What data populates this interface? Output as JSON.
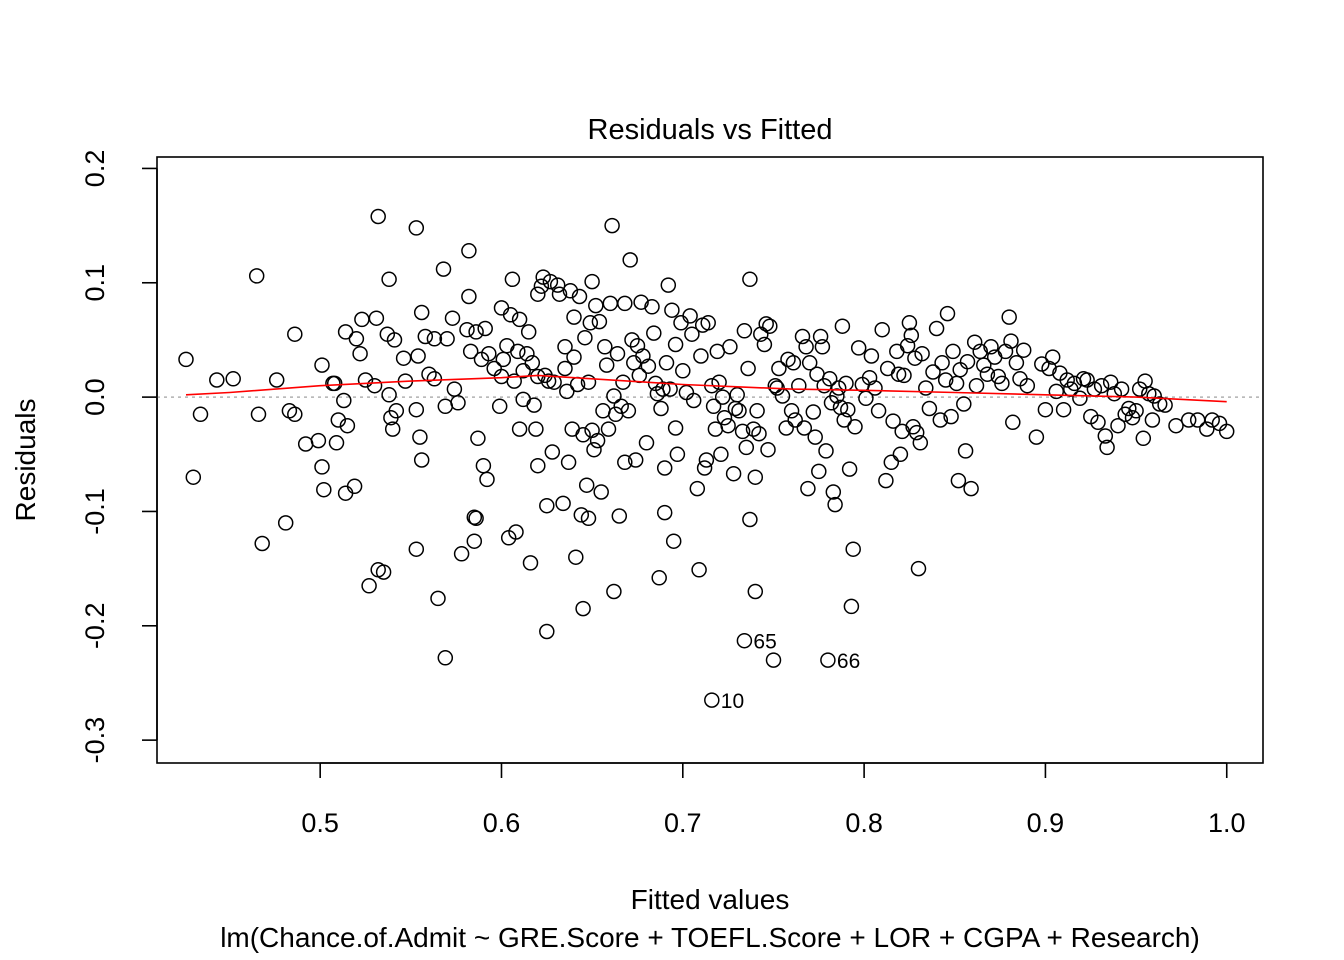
{
  "chart_data": {
    "type": "scatter",
    "title": "Residuals vs Fitted",
    "xlabel": "Fitted values",
    "ylabel": "Residuals",
    "subtitle": "lm(Chance.of.Admit ~ GRE.Score + TOEFL.Score + LOR + CGPA + Research)",
    "xlim": [
      0.41,
      1.02
    ],
    "ylim": [
      -0.32,
      0.21
    ],
    "x_ticks": [
      "0.5",
      "0.6",
      "0.7",
      "0.8",
      "0.9",
      "1.0"
    ],
    "y_ticks": [
      "-0.3",
      "-0.2",
      "-0.1",
      "0.0",
      "0.1",
      "0.2"
    ],
    "grid": false,
    "reference_line": {
      "y": 0.0,
      "style": "dotted",
      "color": "#b0b0b0"
    },
    "smoother_color": "#ff0000",
    "point_color": "#000000",
    "labeled_points": [
      {
        "label": "65",
        "x": 0.734,
        "y": -0.213
      },
      {
        "label": "66",
        "x": 0.78,
        "y": -0.23
      },
      {
        "label": "10",
        "x": 0.716,
        "y": -0.265
      }
    ],
    "smoother": {
      "x": [
        0.426,
        0.45,
        0.5,
        0.55,
        0.6,
        0.62,
        0.65,
        0.68,
        0.7,
        0.73,
        0.76,
        0.8,
        0.85,
        0.9,
        0.95,
        1.0
      ],
      "y": [
        0.002,
        0.004,
        0.01,
        0.014,
        0.017,
        0.019,
        0.016,
        0.013,
        0.011,
        0.009,
        0.007,
        0.006,
        0.004,
        0.002,
        0.0,
        -0.004
      ]
    },
    "points": [
      [
        0.426,
        0.033
      ],
      [
        0.43,
        -0.07
      ],
      [
        0.434,
        -0.015
      ],
      [
        0.443,
        0.015
      ],
      [
        0.452,
        0.016
      ],
      [
        0.465,
        0.106
      ],
      [
        0.466,
        -0.015
      ],
      [
        0.468,
        -0.128
      ],
      [
        0.476,
        0.015
      ],
      [
        0.481,
        -0.11
      ],
      [
        0.483,
        -0.012
      ],
      [
        0.486,
        -0.015
      ],
      [
        0.486,
        0.055
      ],
      [
        0.492,
        -0.041
      ],
      [
        0.499,
        -0.038
      ],
      [
        0.501,
        0.028
      ],
      [
        0.501,
        -0.061
      ],
      [
        0.502,
        -0.081
      ],
      [
        0.507,
        0.012
      ],
      [
        0.508,
        0.012
      ],
      [
        0.509,
        -0.04
      ],
      [
        0.51,
        -0.02
      ],
      [
        0.513,
        -0.003
      ],
      [
        0.514,
        0.057
      ],
      [
        0.514,
        -0.084
      ],
      [
        0.515,
        -0.025
      ],
      [
        0.519,
        -0.078
      ],
      [
        0.52,
        0.051
      ],
      [
        0.522,
        0.038
      ],
      [
        0.523,
        0.068
      ],
      [
        0.525,
        0.015
      ],
      [
        0.527,
        -0.165
      ],
      [
        0.53,
        0.01
      ],
      [
        0.531,
        0.069
      ],
      [
        0.532,
        -0.151
      ],
      [
        0.532,
        0.158
      ],
      [
        0.535,
        -0.153
      ],
      [
        0.537,
        0.055
      ],
      [
        0.538,
        0.103
      ],
      [
        0.538,
        0.002
      ],
      [
        0.539,
        -0.018
      ],
      [
        0.54,
        -0.028
      ],
      [
        0.541,
        0.05
      ],
      [
        0.542,
        -0.012
      ],
      [
        0.546,
        0.034
      ],
      [
        0.547,
        0.014
      ],
      [
        0.553,
        -0.011
      ],
      [
        0.553,
        0.148
      ],
      [
        0.553,
        -0.133
      ],
      [
        0.554,
        0.036
      ],
      [
        0.555,
        -0.035
      ],
      [
        0.556,
        -0.055
      ],
      [
        0.556,
        0.074
      ],
      [
        0.558,
        0.053
      ],
      [
        0.56,
        0.02
      ],
      [
        0.563,
        0.016
      ],
      [
        0.563,
        0.051
      ],
      [
        0.565,
        -0.176
      ],
      [
        0.568,
        0.112
      ],
      [
        0.569,
        -0.008
      ],
      [
        0.569,
        -0.228
      ],
      [
        0.57,
        0.051
      ],
      [
        0.573,
        0.069
      ],
      [
        0.574,
        0.007
      ],
      [
        0.576,
        -0.005
      ],
      [
        0.578,
        -0.137
      ],
      [
        0.581,
        0.059
      ],
      [
        0.582,
        0.088
      ],
      [
        0.582,
        0.128
      ],
      [
        0.583,
        0.04
      ],
      [
        0.585,
        -0.105
      ],
      [
        0.585,
        -0.126
      ],
      [
        0.586,
        -0.106
      ],
      [
        0.587,
        -0.036
      ],
      [
        0.586,
        0.057
      ],
      [
        0.589,
        0.033
      ],
      [
        0.59,
        -0.06
      ],
      [
        0.591,
        0.06
      ],
      [
        0.592,
        -0.072
      ],
      [
        0.593,
        0.038
      ],
      [
        0.596,
        0.025
      ],
      [
        0.599,
        -0.008
      ],
      [
        0.6,
        0.078
      ],
      [
        0.6,
        0.018
      ],
      [
        0.601,
        0.033
      ],
      [
        0.603,
        0.045
      ],
      [
        0.604,
        -0.123
      ],
      [
        0.605,
        0.072
      ],
      [
        0.606,
        0.103
      ],
      [
        0.607,
        0.014
      ],
      [
        0.608,
        -0.118
      ],
      [
        0.609,
        0.04
      ],
      [
        0.61,
        0.068
      ],
      [
        0.61,
        -0.028
      ],
      [
        0.612,
        0.023
      ],
      [
        0.612,
        -0.002
      ],
      [
        0.614,
        0.038
      ],
      [
        0.615,
        0.057
      ],
      [
        0.616,
        -0.145
      ],
      [
        0.617,
        0.03
      ],
      [
        0.618,
        -0.007
      ],
      [
        0.619,
        -0.028
      ],
      [
        0.62,
        0.09
      ],
      [
        0.62,
        0.018
      ],
      [
        0.62,
        -0.06
      ],
      [
        0.622,
        0.097
      ],
      [
        0.623,
        0.105
      ],
      [
        0.624,
        0.019
      ],
      [
        0.625,
        -0.205
      ],
      [
        0.625,
        -0.095
      ],
      [
        0.626,
        0.014
      ],
      [
        0.627,
        0.101
      ],
      [
        0.628,
        -0.048
      ],
      [
        0.629,
        0.013
      ],
      [
        0.631,
        0.098
      ],
      [
        0.632,
        0.09
      ],
      [
        0.634,
        -0.093
      ],
      [
        0.635,
        0.044
      ],
      [
        0.635,
        0.025
      ],
      [
        0.636,
        0.005
      ],
      [
        0.637,
        -0.057
      ],
      [
        0.638,
        0.093
      ],
      [
        0.639,
        -0.028
      ],
      [
        0.64,
        0.07
      ],
      [
        0.64,
        0.035
      ],
      [
        0.641,
        -0.14
      ],
      [
        0.642,
        0.011
      ],
      [
        0.643,
        0.088
      ],
      [
        0.644,
        -0.103
      ],
      [
        0.645,
        -0.033
      ],
      [
        0.645,
        -0.185
      ],
      [
        0.646,
        0.052
      ],
      [
        0.647,
        -0.077
      ],
      [
        0.648,
        -0.106
      ],
      [
        0.648,
        0.013
      ],
      [
        0.649,
        0.065
      ],
      [
        0.65,
        -0.029
      ],
      [
        0.65,
        0.101
      ],
      [
        0.651,
        -0.046
      ],
      [
        0.652,
        0.08
      ],
      [
        0.653,
        -0.038
      ],
      [
        0.654,
        0.066
      ],
      [
        0.655,
        -0.083
      ],
      [
        0.656,
        -0.012
      ],
      [
        0.657,
        0.044
      ],
      [
        0.658,
        0.028
      ],
      [
        0.659,
        -0.028
      ],
      [
        0.66,
        0.082
      ],
      [
        0.661,
        0.15
      ],
      [
        0.662,
        0.001
      ],
      [
        0.662,
        -0.17
      ],
      [
        0.663,
        -0.015
      ],
      [
        0.664,
        0.038
      ],
      [
        0.665,
        -0.104
      ],
      [
        0.666,
        -0.008
      ],
      [
        0.667,
        0.013
      ],
      [
        0.668,
        0.082
      ],
      [
        0.668,
        -0.057
      ],
      [
        0.67,
        -0.012
      ],
      [
        0.671,
        0.12
      ],
      [
        0.672,
        0.05
      ],
      [
        0.673,
        0.03
      ],
      [
        0.674,
        -0.055
      ],
      [
        0.675,
        0.045
      ],
      [
        0.676,
        0.019
      ],
      [
        0.677,
        0.083
      ],
      [
        0.678,
        0.036
      ],
      [
        0.68,
        -0.04
      ],
      [
        0.681,
        0.027
      ],
      [
        0.683,
        0.079
      ],
      [
        0.684,
        0.056
      ],
      [
        0.685,
        0.012
      ],
      [
        0.686,
        0.003
      ],
      [
        0.687,
        -0.158
      ],
      [
        0.688,
        -0.01
      ],
      [
        0.689,
        0.007
      ],
      [
        0.69,
        -0.101
      ],
      [
        0.69,
        -0.062
      ],
      [
        0.691,
        0.03
      ],
      [
        0.692,
        0.098
      ],
      [
        0.693,
        0.007
      ],
      [
        0.694,
        0.076
      ],
      [
        0.695,
        -0.126
      ],
      [
        0.696,
        -0.027
      ],
      [
        0.696,
        0.046
      ],
      [
        0.697,
        -0.05
      ],
      [
        0.699,
        0.065
      ],
      [
        0.7,
        0.023
      ],
      [
        0.702,
        0.004
      ],
      [
        0.704,
        0.071
      ],
      [
        0.705,
        0.055
      ],
      [
        0.706,
        -0.003
      ],
      [
        0.708,
        -0.08
      ],
      [
        0.709,
        -0.151
      ],
      [
        0.71,
        0.036
      ],
      [
        0.711,
        0.063
      ],
      [
        0.712,
        -0.062
      ],
      [
        0.713,
        -0.055
      ],
      [
        0.714,
        0.065
      ],
      [
        0.716,
        -0.265
      ],
      [
        0.716,
        0.01
      ],
      [
        0.717,
        -0.008
      ],
      [
        0.718,
        -0.028
      ],
      [
        0.719,
        0.04
      ],
      [
        0.72,
        0.013
      ],
      [
        0.721,
        -0.05
      ],
      [
        0.722,
        0.0
      ],
      [
        0.723,
        -0.018
      ],
      [
        0.725,
        -0.025
      ],
      [
        0.726,
        0.044
      ],
      [
        0.728,
        -0.067
      ],
      [
        0.729,
        -0.01
      ],
      [
        0.73,
        0.002
      ],
      [
        0.731,
        -0.012
      ],
      [
        0.733,
        -0.03
      ],
      [
        0.734,
        -0.213
      ],
      [
        0.734,
        0.058
      ],
      [
        0.735,
        -0.044
      ],
      [
        0.736,
        0.025
      ],
      [
        0.737,
        -0.107
      ],
      [
        0.737,
        0.103
      ],
      [
        0.739,
        -0.028
      ],
      [
        0.74,
        -0.07
      ],
      [
        0.74,
        -0.17
      ],
      [
        0.741,
        -0.012
      ],
      [
        0.742,
        -0.032
      ],
      [
        0.743,
        0.055
      ],
      [
        0.745,
        0.046
      ],
      [
        0.746,
        0.064
      ],
      [
        0.747,
        -0.046
      ],
      [
        0.748,
        0.062
      ],
      [
        0.75,
        -0.23
      ],
      [
        0.751,
        0.01
      ],
      [
        0.752,
        0.008
      ],
      [
        0.753,
        0.025
      ],
      [
        0.755,
        0.001
      ],
      [
        0.757,
        -0.027
      ],
      [
        0.758,
        0.033
      ],
      [
        0.76,
        -0.012
      ],
      [
        0.761,
        0.03
      ],
      [
        0.762,
        -0.02
      ],
      [
        0.764,
        0.01
      ],
      [
        0.766,
        0.053
      ],
      [
        0.767,
        -0.027
      ],
      [
        0.768,
        0.044
      ],
      [
        0.769,
        -0.08
      ],
      [
        0.77,
        0.03
      ],
      [
        0.772,
        -0.013
      ],
      [
        0.773,
        -0.035
      ],
      [
        0.774,
        0.02
      ],
      [
        0.775,
        -0.065
      ],
      [
        0.776,
        0.053
      ],
      [
        0.777,
        0.044
      ],
      [
        0.778,
        0.01
      ],
      [
        0.779,
        -0.047
      ],
      [
        0.78,
        -0.23
      ],
      [
        0.781,
        0.016
      ],
      [
        0.782,
        -0.005
      ],
      [
        0.783,
        -0.083
      ],
      [
        0.784,
        -0.094
      ],
      [
        0.785,
        0.001
      ],
      [
        0.786,
        0.008
      ],
      [
        0.787,
        -0.009
      ],
      [
        0.788,
        0.062
      ],
      [
        0.789,
        -0.02
      ],
      [
        0.79,
        0.012
      ],
      [
        0.791,
        -0.011
      ],
      [
        0.792,
        -0.063
      ],
      [
        0.793,
        -0.183
      ],
      [
        0.794,
        -0.133
      ],
      [
        0.795,
        -0.026
      ],
      [
        0.797,
        0.043
      ],
      [
        0.799,
        0.011
      ],
      [
        0.801,
        -0.001
      ],
      [
        0.803,
        0.017
      ],
      [
        0.804,
        0.036
      ],
      [
        0.806,
        0.008
      ],
      [
        0.808,
        -0.012
      ],
      [
        0.81,
        0.059
      ],
      [
        0.812,
        -0.073
      ],
      [
        0.813,
        0.025
      ],
      [
        0.815,
        -0.057
      ],
      [
        0.816,
        -0.021
      ],
      [
        0.818,
        0.04
      ],
      [
        0.819,
        0.02
      ],
      [
        0.82,
        -0.05
      ],
      [
        0.821,
        -0.03
      ],
      [
        0.822,
        0.019
      ],
      [
        0.824,
        0.045
      ],
      [
        0.825,
        0.065
      ],
      [
        0.826,
        0.054
      ],
      [
        0.827,
        -0.026
      ],
      [
        0.828,
        0.034
      ],
      [
        0.829,
        -0.031
      ],
      [
        0.83,
        -0.15
      ],
      [
        0.831,
        -0.04
      ],
      [
        0.832,
        0.038
      ],
      [
        0.834,
        0.008
      ],
      [
        0.836,
        -0.01
      ],
      [
        0.838,
        0.022
      ],
      [
        0.84,
        0.06
      ],
      [
        0.842,
        -0.02
      ],
      [
        0.843,
        0.03
      ],
      [
        0.845,
        0.015
      ],
      [
        0.846,
        0.073
      ],
      [
        0.848,
        -0.017
      ],
      [
        0.849,
        0.04
      ],
      [
        0.851,
        0.012
      ],
      [
        0.852,
        -0.073
      ],
      [
        0.853,
        0.024
      ],
      [
        0.855,
        -0.006
      ],
      [
        0.856,
        -0.047
      ],
      [
        0.857,
        0.031
      ],
      [
        0.859,
        -0.08
      ],
      [
        0.861,
        0.048
      ],
      [
        0.862,
        0.01
      ],
      [
        0.864,
        0.04
      ],
      [
        0.866,
        0.028
      ],
      [
        0.868,
        0.02
      ],
      [
        0.87,
        0.044
      ],
      [
        0.872,
        0.035
      ],
      [
        0.874,
        0.018
      ],
      [
        0.876,
        0.012
      ],
      [
        0.878,
        0.04
      ],
      [
        0.88,
        0.07
      ],
      [
        0.881,
        0.049
      ],
      [
        0.882,
        -0.022
      ],
      [
        0.884,
        0.03
      ],
      [
        0.886,
        0.016
      ],
      [
        0.888,
        0.041
      ],
      [
        0.89,
        0.01
      ],
      [
        0.895,
        -0.035
      ],
      [
        0.898,
        0.029
      ],
      [
        0.9,
        -0.011
      ],
      [
        0.902,
        0.025
      ],
      [
        0.904,
        0.035
      ],
      [
        0.906,
        0.005
      ],
      [
        0.908,
        0.021
      ],
      [
        0.91,
        -0.011
      ],
      [
        0.912,
        0.015
      ],
      [
        0.914,
        0.007
      ],
      [
        0.916,
        0.012
      ],
      [
        0.919,
        -0.001
      ],
      [
        0.921,
        0.016
      ],
      [
        0.923,
        0.015
      ],
      [
        0.925,
        -0.017
      ],
      [
        0.927,
        0.007
      ],
      [
        0.929,
        -0.022
      ],
      [
        0.931,
        0.01
      ],
      [
        0.933,
        -0.034
      ],
      [
        0.934,
        -0.044
      ],
      [
        0.936,
        0.013
      ],
      [
        0.938,
        0.003
      ],
      [
        0.94,
        -0.025
      ],
      [
        0.942,
        0.007
      ],
      [
        0.944,
        -0.015
      ],
      [
        0.946,
        -0.01
      ],
      [
        0.948,
        -0.018
      ],
      [
        0.95,
        -0.012
      ],
      [
        0.952,
        0.007
      ],
      [
        0.954,
        -0.036
      ],
      [
        0.955,
        0.014
      ],
      [
        0.957,
        0.003
      ],
      [
        0.959,
        -0.02
      ],
      [
        0.96,
        0.001
      ],
      [
        0.963,
        -0.006
      ],
      [
        0.966,
        -0.007
      ],
      [
        0.972,
        -0.025
      ],
      [
        0.979,
        -0.02
      ],
      [
        0.984,
        -0.02
      ],
      [
        0.989,
        -0.028
      ],
      [
        0.992,
        -0.02
      ],
      [
        0.996,
        -0.023
      ],
      [
        1.0,
        -0.03
      ]
    ]
  }
}
